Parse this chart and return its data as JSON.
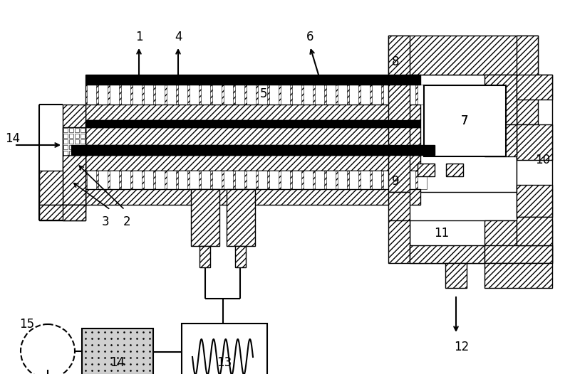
{
  "bg_color": "#ffffff",
  "lc": "#000000",
  "figsize": [
    8.0,
    5.26
  ],
  "dpi": 100
}
